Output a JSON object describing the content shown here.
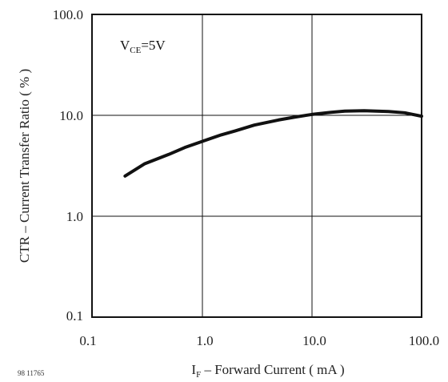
{
  "chart_data": {
    "type": "line",
    "x_scale": "log",
    "y_scale": "log",
    "xlim": [
      0.1,
      100.0
    ],
    "ylim": [
      0.1,
      100.0
    ],
    "grid": true,
    "x_ticks": [
      "0.1",
      "1.0",
      "10.0",
      "100.0"
    ],
    "x_tick_values": [
      0.1,
      1.0,
      10.0,
      100.0
    ],
    "y_ticks": [
      "0.1",
      "1.0",
      "10.0",
      "100.0"
    ],
    "y_tick_values": [
      0.1,
      1.0,
      10.0,
      100.0
    ],
    "xlabel_main": "I",
    "xlabel_sub": "F",
    "xlabel_rest": " – Forward Current ( mA )",
    "ylabel": "CTR – Current Transfer Ratio ( % )",
    "annotation_main": "V",
    "annotation_sub": "CE",
    "annotation_rest": "=5V",
    "figure_id": "98 11765",
    "series": [
      {
        "x": [
          0.2,
          0.3,
          0.5,
          0.7,
          1.0,
          1.5,
          2.0,
          3.0,
          5.0,
          7.0,
          10.0,
          15.0,
          20.0,
          30.0,
          50.0,
          70.0,
          100.0
        ],
        "y": [
          2.5,
          3.3,
          4.1,
          4.8,
          5.5,
          6.4,
          7.0,
          8.0,
          9.0,
          9.6,
          10.2,
          10.7,
          11.0,
          11.1,
          10.9,
          10.6,
          9.8
        ]
      }
    ]
  }
}
